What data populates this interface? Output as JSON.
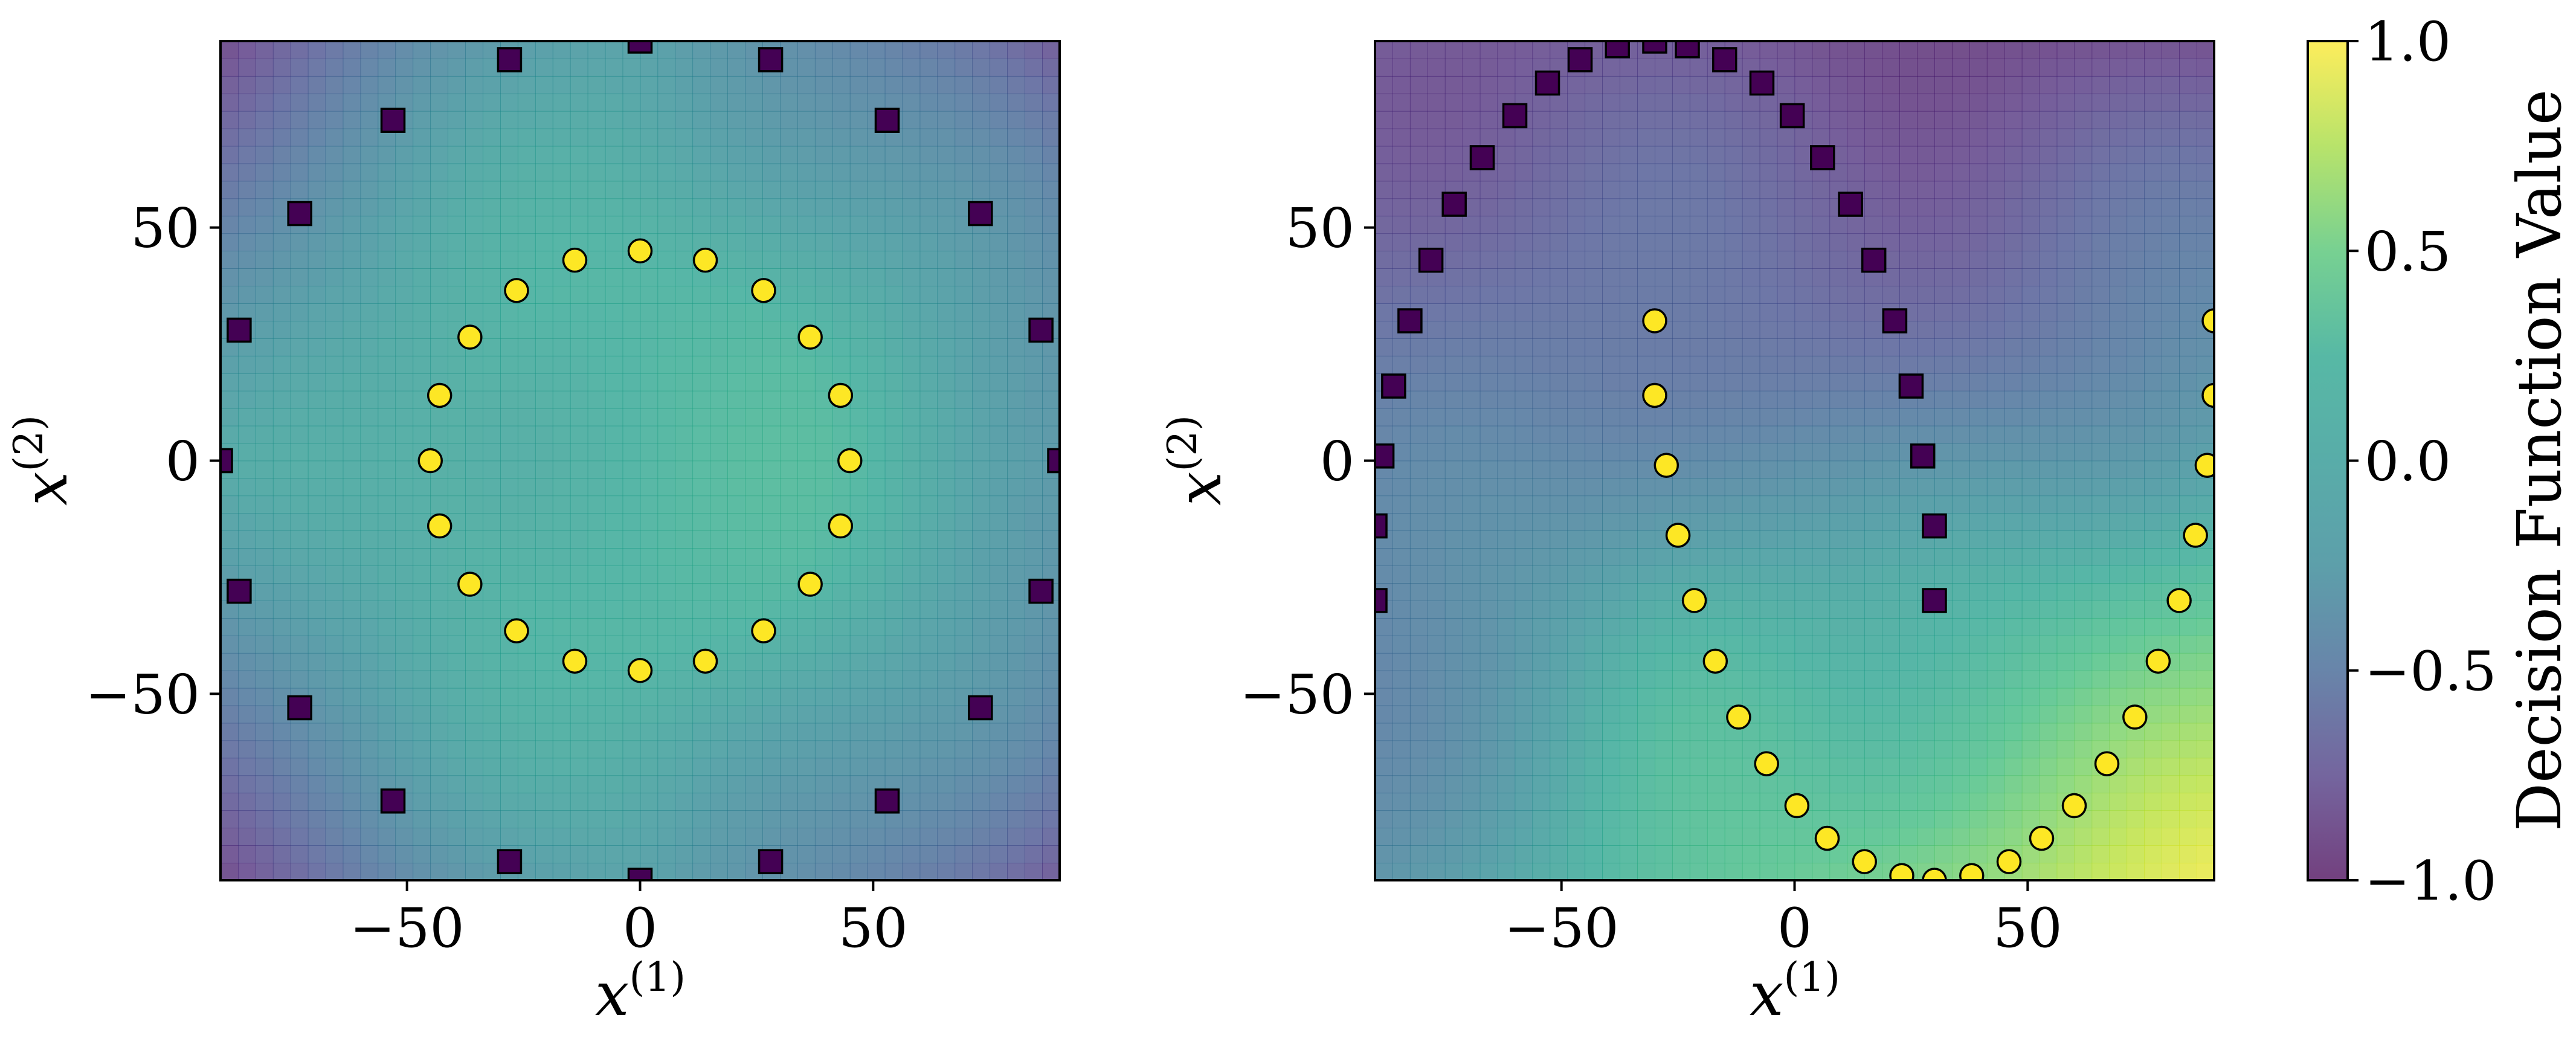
{
  "chart_data": [
    {
      "type": "heatmap",
      "xlabel": "x",
      "xlabel_superscript": "(1)",
      "ylabel": "x",
      "ylabel_superscript": "(2)",
      "xlim": [
        -90,
        90
      ],
      "ylim": [
        -90,
        90
      ],
      "xticks": [
        -50,
        0,
        50
      ],
      "yticks": [
        -50,
        0,
        50
      ],
      "xtick_labels": [
        "−50",
        "0",
        "50"
      ],
      "ytick_labels": [
        "−50",
        "0",
        "50"
      ],
      "background": {
        "description_level": "decision function surface",
        "grid_n": 48,
        "center_value": 0.1,
        "corner_value": -0.75
      },
      "series": [
        {
          "marker": "circle",
          "color": "#fde725",
          "points": [
            [
              0,
              45
            ],
            [
              14,
              43
            ],
            [
              26.5,
              36.5
            ],
            [
              36.5,
              26.5
            ],
            [
              43,
              14
            ],
            [
              45,
              0
            ],
            [
              43,
              -14
            ],
            [
              36.5,
              -26.5
            ],
            [
              26.5,
              -36.5
            ],
            [
              14,
              -43
            ],
            [
              0,
              -45
            ],
            [
              -14,
              -43
            ],
            [
              -26.5,
              -36.5
            ],
            [
              -36.5,
              -26.5
            ],
            [
              -43,
              -14
            ],
            [
              -45,
              0
            ],
            [
              -43,
              14
            ],
            [
              -36.5,
              26.5
            ],
            [
              -26.5,
              36.5
            ],
            [
              -14,
              43
            ]
          ]
        },
        {
          "marker": "square",
          "color": "#440154",
          "points": [
            [
              0,
              90
            ],
            [
              28,
              86
            ],
            [
              53,
              73
            ],
            [
              73,
              53
            ],
            [
              86,
              28
            ],
            [
              90,
              0
            ],
            [
              86,
              -28
            ],
            [
              73,
              -53
            ],
            [
              53,
              -73
            ],
            [
              28,
              -86
            ],
            [
              0,
              -90
            ],
            [
              -28,
              -86
            ],
            [
              -53,
              -73
            ],
            [
              -73,
              -53
            ],
            [
              -86,
              -28
            ],
            [
              -90,
              0
            ],
            [
              -86,
              28
            ],
            [
              -73,
              53
            ],
            [
              -53,
              73
            ],
            [
              -28,
              86
            ]
          ]
        }
      ]
    },
    {
      "type": "heatmap",
      "xlabel": "x",
      "xlabel_superscript": "(1)",
      "ylabel": "x",
      "ylabel_superscript": "(2)",
      "xlim": [
        -90,
        90
      ],
      "ylim": [
        -90,
        90
      ],
      "xticks": [
        -50,
        0,
        50
      ],
      "yticks": [
        -50,
        0,
        50
      ],
      "xtick_labels": [
        "−50",
        "0",
        "50"
      ],
      "ytick_labels": [
        "−50",
        "0",
        "50"
      ],
      "background": {
        "description_level": "decision function surface",
        "grid_n": 48,
        "top_left_value": -0.8,
        "bottom_right_value": 0.95
      },
      "series": [
        {
          "marker": "circle",
          "color": "#fde725",
          "points": [
            [
              -30,
              30
            ],
            [
              -30,
              14
            ],
            [
              -27.5,
              -1
            ],
            [
              -25,
              -16
            ],
            [
              -21.5,
              -30
            ],
            [
              -17,
              -43
            ],
            [
              -12,
              -55
            ],
            [
              -6,
              -65
            ],
            [
              0.5,
              -74
            ],
            [
              7,
              -81
            ],
            [
              15,
              -86
            ],
            [
              23,
              -89
            ],
            [
              30,
              -90
            ],
            [
              38,
              -89
            ],
            [
              46,
              -86
            ],
            [
              53,
              -81
            ],
            [
              60,
              -74
            ],
            [
              67,
              -65
            ],
            [
              73,
              -55
            ],
            [
              78,
              -43
            ],
            [
              82.5,
              -30
            ],
            [
              86,
              -16
            ],
            [
              88.5,
              -1
            ],
            [
              90,
              14
            ],
            [
              90,
              30
            ]
          ]
        },
        {
          "marker": "square",
          "color": "#440154",
          "points": [
            [
              -90,
              -30
            ],
            [
              -90,
              -14
            ],
            [
              -88.5,
              1
            ],
            [
              -86,
              16
            ],
            [
              -82.5,
              30
            ],
            [
              -78,
              43
            ],
            [
              -73,
              55
            ],
            [
              -67,
              65
            ],
            [
              -60,
              74
            ],
            [
              -53,
              81
            ],
            [
              -46,
              86
            ],
            [
              -38,
              89
            ],
            [
              -30,
              90
            ],
            [
              -23,
              89
            ],
            [
              -15,
              86
            ],
            [
              -7,
              81
            ],
            [
              -0.5,
              74
            ],
            [
              6,
              65
            ],
            [
              12,
              55
            ],
            [
              17,
              43
            ],
            [
              21.5,
              30
            ],
            [
              25,
              16
            ],
            [
              27.5,
              1
            ],
            [
              30,
              -14
            ],
            [
              30,
              -30
            ]
          ]
        }
      ]
    }
  ],
  "colorbar": {
    "label": "Decision Function Value",
    "range": [
      -1.0,
      1.0
    ],
    "ticks": [
      -1.0,
      -0.5,
      0.0,
      0.5,
      1.0
    ],
    "tick_labels": [
      "−1.0",
      "−0.5",
      "0.0",
      "0.5",
      "1.0"
    ],
    "colormap": "viridis",
    "alpha": 0.75
  }
}
